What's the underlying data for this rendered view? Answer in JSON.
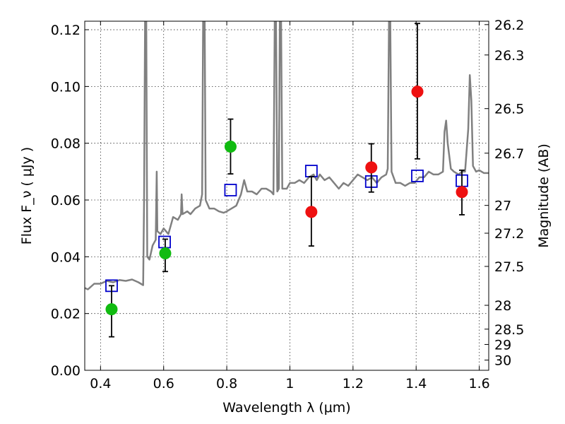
{
  "chart_data": {
    "type": "scatter",
    "title": "",
    "xlabel": "Wavelength  λ (μm)",
    "ylabel": "Flux  F_ν  ( μJy )",
    "y2label": "Magnitude (AB)",
    "xlim": [
      0.35,
      1.63
    ],
    "ylim": [
      0.0,
      0.123
    ],
    "grid": true,
    "x_ticks": [
      0.4,
      0.6,
      0.8,
      1.0,
      1.2,
      1.4,
      1.6
    ],
    "x_tick_labels": [
      "0.4",
      "0.6",
      "0.8",
      "1",
      "1.2",
      "1.4",
      "1.6"
    ],
    "y_ticks": [
      0.0,
      0.02,
      0.04,
      0.06,
      0.08,
      0.1,
      0.12
    ],
    "y_tick_labels": [
      "0.00",
      "0.02",
      "0.04",
      "0.06",
      "0.08",
      "0.10",
      "0.12"
    ],
    "magnitude_ticks": [
      {
        "flux": 0.1218,
        "label": "26.2"
      },
      {
        "flux": 0.1111,
        "label": "26.3"
      },
      {
        "flux": 0.0922,
        "label": "26.5"
      },
      {
        "flux": 0.0765,
        "label": "26.7"
      },
      {
        "flux": 0.0581,
        "label": "27"
      },
      {
        "flux": 0.0483,
        "label": "27.2"
      },
      {
        "flux": 0.0366,
        "label": "27.5"
      },
      {
        "flux": 0.0229,
        "label": "28"
      },
      {
        "flux": 0.0145,
        "label": "28.5"
      },
      {
        "flux": 0.0091,
        "label": "29"
      },
      {
        "flux": 0.0036,
        "label": "30"
      }
    ],
    "series": [
      {
        "kind": "spectrum",
        "color": "#808080",
        "points": [
          [
            0.35,
            0.029
          ],
          [
            0.36,
            0.0285
          ],
          [
            0.38,
            0.0305
          ],
          [
            0.4,
            0.0305
          ],
          [
            0.42,
            0.0315
          ],
          [
            0.44,
            0.031
          ],
          [
            0.46,
            0.0318
          ],
          [
            0.48,
            0.0315
          ],
          [
            0.5,
            0.032
          ],
          [
            0.52,
            0.031
          ],
          [
            0.535,
            0.03
          ],
          [
            0.538,
            0.06
          ],
          [
            0.541,
            0.123
          ],
          [
            0.545,
            0.123
          ],
          [
            0.548,
            0.04
          ],
          [
            0.555,
            0.039
          ],
          [
            0.565,
            0.044
          ],
          [
            0.575,
            0.046
          ],
          [
            0.578,
            0.07
          ],
          [
            0.58,
            0.049
          ],
          [
            0.59,
            0.048
          ],
          [
            0.6,
            0.05
          ],
          [
            0.615,
            0.048
          ],
          [
            0.625,
            0.052
          ],
          [
            0.63,
            0.054
          ],
          [
            0.645,
            0.053
          ],
          [
            0.655,
            0.055
          ],
          [
            0.657,
            0.062
          ],
          [
            0.66,
            0.055
          ],
          [
            0.675,
            0.056
          ],
          [
            0.685,
            0.055
          ],
          [
            0.7,
            0.057
          ],
          [
            0.715,
            0.058
          ],
          [
            0.722,
            0.062
          ],
          [
            0.725,
            0.123
          ],
          [
            0.73,
            0.123
          ],
          [
            0.733,
            0.06
          ],
          [
            0.745,
            0.057
          ],
          [
            0.76,
            0.057
          ],
          [
            0.775,
            0.056
          ],
          [
            0.79,
            0.0555
          ],
          [
            0.8,
            0.056
          ],
          [
            0.815,
            0.057
          ],
          [
            0.83,
            0.058
          ],
          [
            0.845,
            0.062
          ],
          [
            0.855,
            0.067
          ],
          [
            0.865,
            0.063
          ],
          [
            0.88,
            0.063
          ],
          [
            0.895,
            0.062
          ],
          [
            0.91,
            0.064
          ],
          [
            0.925,
            0.064
          ],
          [
            0.94,
            0.063
          ],
          [
            0.948,
            0.062
          ],
          [
            0.952,
            0.123
          ],
          [
            0.956,
            0.123
          ],
          [
            0.96,
            0.063
          ],
          [
            0.965,
            0.064
          ],
          [
            0.968,
            0.123
          ],
          [
            0.972,
            0.123
          ],
          [
            0.976,
            0.064
          ],
          [
            0.99,
            0.064
          ],
          [
            1.0,
            0.066
          ],
          [
            1.015,
            0.066
          ],
          [
            1.03,
            0.067
          ],
          [
            1.045,
            0.066
          ],
          [
            1.06,
            0.068
          ],
          [
            1.075,
            0.069
          ],
          [
            1.085,
            0.067
          ],
          [
            1.095,
            0.069
          ],
          [
            1.11,
            0.067
          ],
          [
            1.125,
            0.068
          ],
          [
            1.14,
            0.066
          ],
          [
            1.155,
            0.064
          ],
          [
            1.17,
            0.066
          ],
          [
            1.185,
            0.065
          ],
          [
            1.2,
            0.067
          ],
          [
            1.215,
            0.069
          ],
          [
            1.23,
            0.068
          ],
          [
            1.245,
            0.067
          ],
          [
            1.26,
            0.068
          ],
          [
            1.275,
            0.066
          ],
          [
            1.29,
            0.068
          ],
          [
            1.305,
            0.069
          ],
          [
            1.31,
            0.071
          ],
          [
            1.314,
            0.123
          ],
          [
            1.318,
            0.123
          ],
          [
            1.322,
            0.07
          ],
          [
            1.335,
            0.066
          ],
          [
            1.35,
            0.066
          ],
          [
            1.365,
            0.065
          ],
          [
            1.38,
            0.066
          ],
          [
            1.395,
            0.066
          ],
          [
            1.41,
            0.068
          ],
          [
            1.425,
            0.068
          ],
          [
            1.44,
            0.07
          ],
          [
            1.455,
            0.069
          ],
          [
            1.47,
            0.069
          ],
          [
            1.485,
            0.07
          ],
          [
            1.49,
            0.084
          ],
          [
            1.495,
            0.088
          ],
          [
            1.5,
            0.08
          ],
          [
            1.51,
            0.071
          ],
          [
            1.52,
            0.07
          ],
          [
            1.535,
            0.069
          ],
          [
            1.545,
            0.07
          ],
          [
            1.555,
            0.07
          ],
          [
            1.565,
            0.085
          ],
          [
            1.57,
            0.104
          ],
          [
            1.575,
            0.095
          ],
          [
            1.58,
            0.072
          ],
          [
            1.59,
            0.07
          ],
          [
            1.6,
            0.0705
          ],
          [
            1.615,
            0.0695
          ],
          [
            1.63,
            0.0695
          ]
        ]
      },
      {
        "kind": "model-photometry",
        "marker": "open-square",
        "color": "#0000cc",
        "points": [
          [
            0.435,
            0.0298
          ],
          [
            0.603,
            0.0452
          ],
          [
            0.812,
            0.0635
          ],
          [
            1.068,
            0.0702
          ],
          [
            1.258,
            0.0665
          ],
          [
            1.404,
            0.0685
          ],
          [
            1.545,
            0.0668
          ]
        ]
      },
      {
        "kind": "photometry",
        "marker": "filled-circle",
        "color": "#11bb11",
        "points": [
          {
            "x": 0.435,
            "y": 0.0215,
            "ylo": 0.0118,
            "yhi": 0.0298
          },
          {
            "x": 0.605,
            "y": 0.0412,
            "ylo": 0.0348,
            "yhi": 0.0462
          },
          {
            "x": 0.812,
            "y": 0.0788,
            "ylo": 0.0692,
            "yhi": 0.0885
          }
        ]
      },
      {
        "kind": "photometry",
        "marker": "filled-circle",
        "color": "#ee1111",
        "points": [
          {
            "x": 1.068,
            "y": 0.0558,
            "ylo": 0.0438,
            "yhi": 0.0682
          },
          {
            "x": 1.258,
            "y": 0.0715,
            "ylo": 0.0628,
            "yhi": 0.0798
          },
          {
            "x": 1.404,
            "y": 0.0982,
            "ylo": 0.0745,
            "yhi": 0.1222
          },
          {
            "x": 1.545,
            "y": 0.0628,
            "ylo": 0.0548,
            "yhi": 0.0705
          }
        ]
      }
    ]
  }
}
